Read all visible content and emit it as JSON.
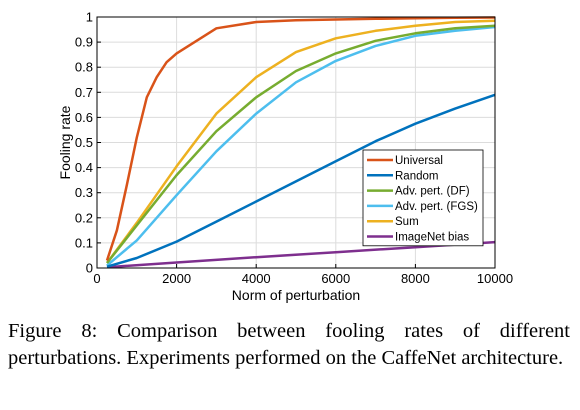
{
  "chart_data": {
    "type": "line",
    "title": "",
    "xlabel": "Norm of perturbation",
    "ylabel": "Fooling rate",
    "xlim": [
      0,
      10000
    ],
    "ylim": [
      0,
      1
    ],
    "xticks": [
      0,
      2000,
      4000,
      6000,
      8000,
      10000
    ],
    "xtick_labels": [
      "0",
      "2000",
      "4000",
      "6000",
      "8000",
      "10000"
    ],
    "yticks": [
      0,
      0.1,
      0.2,
      0.3,
      0.4,
      0.5,
      0.6,
      0.7,
      0.8,
      0.9,
      1
    ],
    "ytick_labels": [
      "0",
      "0.1",
      "0.2",
      "0.3",
      "0.4",
      "0.5",
      "0.6",
      "0.7",
      "0.8",
      "0.9",
      "1"
    ],
    "grid": true,
    "legend_position": "lower-right",
    "series": [
      {
        "name": "Universal",
        "color": "#d95319",
        "x": [
          250,
          500,
          750,
          1000,
          1250,
          1500,
          1750,
          2000,
          3000,
          4000,
          5000,
          6000,
          7000,
          8000,
          9000,
          10000
        ],
        "y": [
          0.03,
          0.15,
          0.33,
          0.52,
          0.68,
          0.76,
          0.82,
          0.855,
          0.955,
          0.98,
          0.987,
          0.99,
          0.993,
          0.995,
          0.997,
          0.998
        ]
      },
      {
        "name": "Random",
        "color": "#0072bd",
        "x": [
          250,
          1000,
          2000,
          3000,
          4000,
          5000,
          6000,
          7000,
          8000,
          9000,
          10000
        ],
        "y": [
          0.005,
          0.04,
          0.105,
          0.185,
          0.265,
          0.345,
          0.425,
          0.505,
          0.575,
          0.635,
          0.69
        ]
      },
      {
        "name": "Adv. pert. (DF)",
        "color": "#77ac30",
        "x": [
          250,
          1000,
          2000,
          3000,
          4000,
          5000,
          6000,
          7000,
          8000,
          9000,
          10000
        ],
        "y": [
          0.02,
          0.17,
          0.37,
          0.545,
          0.68,
          0.785,
          0.855,
          0.905,
          0.935,
          0.955,
          0.965
        ]
      },
      {
        "name": "Adv. pert. (FGS)",
        "color": "#4dbeee",
        "x": [
          250,
          1000,
          2000,
          3000,
          4000,
          5000,
          6000,
          7000,
          8000,
          9000,
          10000
        ],
        "y": [
          0.01,
          0.11,
          0.29,
          0.465,
          0.615,
          0.74,
          0.825,
          0.885,
          0.925,
          0.945,
          0.96
        ]
      },
      {
        "name": "Sum",
        "color": "#edb120",
        "x": [
          250,
          1000,
          2000,
          3000,
          4000,
          5000,
          6000,
          7000,
          8000,
          9000,
          10000
        ],
        "y": [
          0.02,
          0.18,
          0.405,
          0.615,
          0.76,
          0.86,
          0.915,
          0.945,
          0.965,
          0.98,
          0.985
        ]
      },
      {
        "name": "ImageNet bias",
        "color": "#7e2f8e",
        "x": [
          250,
          2000,
          4000,
          6000,
          8000,
          10000
        ],
        "y": [
          0.003,
          0.022,
          0.043,
          0.063,
          0.083,
          0.103
        ]
      }
    ]
  },
  "caption": {
    "text": "Figure 8:  Comparison between fooling rates of different perturbations. Experiments performed on the CaffeNet architecture."
  }
}
